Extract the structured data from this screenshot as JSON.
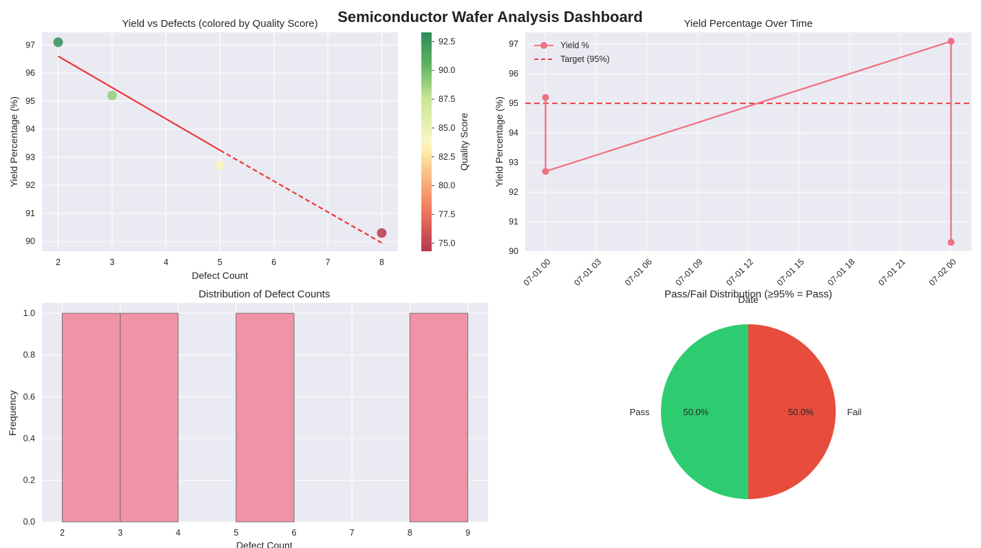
{
  "page": {
    "title": "Semiconductor Wafer Analysis Dashboard"
  },
  "colors": {
    "panel_bg": "#eaeaf2",
    "grid": "#ffffff",
    "yield_line": "#f07084",
    "target_line": "#f23a3a",
    "trend_line": "#ee3333",
    "hist_bar": "#f093a6",
    "pass": "#2ecc71",
    "fail": "#e74c3c",
    "colormap": [
      "#b5374f",
      "#f47c5e",
      "#fde9a5",
      "#c7e694",
      "#5fb45f",
      "#2f8a5c"
    ]
  },
  "chart_data": [
    {
      "type": "scatter",
      "title": "Yield vs Defects (colored by Quality Score)",
      "xlabel": "Defect Count",
      "ylabel": "Yield Percentage (%)",
      "xlim": [
        1.7,
        8.3
      ],
      "ylim": [
        89.65,
        97.45
      ],
      "xticks": [
        "2",
        "3",
        "4",
        "5",
        "6",
        "7",
        "8"
      ],
      "yticks": [
        "90",
        "91",
        "92",
        "93",
        "94",
        "95",
        "96",
        "97"
      ],
      "points": [
        {
          "x": 2,
          "y": 97.1,
          "quality": 93
        },
        {
          "x": 3,
          "y": 95.2,
          "quality": 89
        },
        {
          "x": 5,
          "y": 92.7,
          "quality": 84
        },
        {
          "x": 8,
          "y": 90.3,
          "quality": 74.5
        }
      ],
      "trend": {
        "x_start": 2,
        "y_start": 96.6,
        "x_split": 5,
        "y_split": 93.25,
        "x_end": 8,
        "y_end": 89.95
      },
      "colorbar": {
        "label": "Quality Score",
        "range": [
          74.3,
          93.3
        ],
        "ticks": [
          "75.0",
          "77.5",
          "80.0",
          "82.5",
          "85.0",
          "87.5",
          "90.0",
          "92.5"
        ]
      },
      "grid": true
    },
    {
      "type": "line",
      "title": "Yield Percentage Over Time",
      "xlabel": "Date",
      "ylabel": "Yield Percentage (%)",
      "xlim_hours": [
        -1.2,
        25.2
      ],
      "ylim": [
        90,
        97.4
      ],
      "xticks": [
        "07-01 00",
        "07-01 03",
        "07-01 06",
        "07-01 09",
        "07-01 12",
        "07-01 15",
        "07-01 18",
        "07-01 21",
        "07-02 00"
      ],
      "yticks": [
        "90",
        "91",
        "92",
        "93",
        "94",
        "95",
        "96",
        "97"
      ],
      "series": [
        {
          "name": "Yield %",
          "x": [
            "07-01 00",
            "07-01 00",
            "07-02 00",
            "07-02 00"
          ],
          "values": [
            95.2,
            92.7,
            97.1,
            90.3
          ]
        }
      ],
      "target": {
        "name": "Target (95%)",
        "value": 95
      },
      "legend": "top-left",
      "grid": true
    },
    {
      "type": "bar",
      "title": "Distribution of Defect Counts",
      "xlabel": "Defect Count",
      "ylabel": "Frequency",
      "xlim": [
        1.65,
        9.35
      ],
      "ylim": [
        0,
        1.05
      ],
      "xticks": [
        "2",
        "3",
        "4",
        "5",
        "6",
        "7",
        "8",
        "9"
      ],
      "yticks": [
        "0.0",
        "0.2",
        "0.4",
        "0.6",
        "0.8",
        "1.0"
      ],
      "bins": [
        {
          "start": 2,
          "end": 3,
          "value": 1
        },
        {
          "start": 3,
          "end": 4,
          "value": 1
        },
        {
          "start": 5,
          "end": 6,
          "value": 1
        },
        {
          "start": 8,
          "end": 9,
          "value": 1
        }
      ],
      "grid": true
    },
    {
      "type": "pie",
      "title": "Pass/Fail Distribution (≥95% = Pass)",
      "slices": [
        {
          "label": "Pass",
          "value": 50.0,
          "pct_label": "50.0%",
          "color": "#2ecc71"
        },
        {
          "label": "Fail",
          "value": 50.0,
          "pct_label": "50.0%",
          "color": "#e74c3c"
        }
      ]
    }
  ]
}
